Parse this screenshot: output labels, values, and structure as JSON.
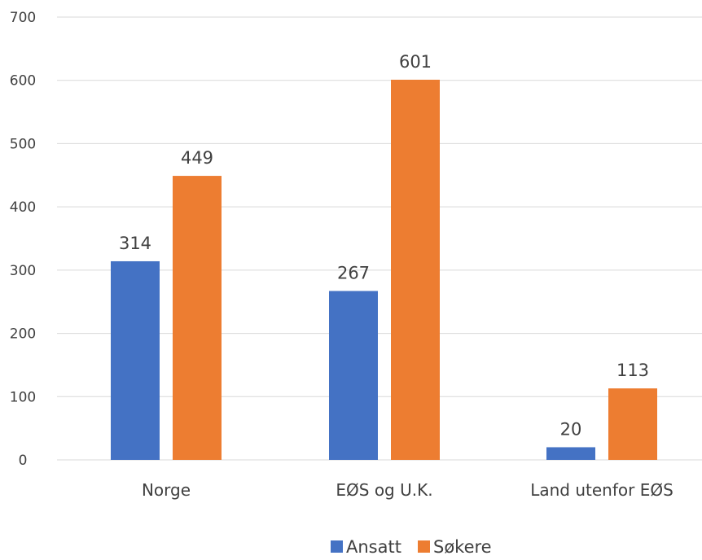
{
  "chart_data": {
    "type": "bar",
    "categories": [
      "Norge",
      "EØS og U.K.",
      "Land utenfor EØS"
    ],
    "series": [
      {
        "name": "Ansatt",
        "values": [
          314,
          267,
          20
        ],
        "color": "#4472C4"
      },
      {
        "name": "Søkere",
        "values": [
          449,
          601,
          113
        ],
        "color": "#ED7D31"
      }
    ],
    "title": "",
    "xlabel": "",
    "ylabel": "",
    "ylim": [
      0,
      700
    ],
    "yticks": [
      0,
      100,
      200,
      300,
      400,
      500,
      600,
      700
    ],
    "grid": true,
    "legend_position": "bottom",
    "data_labels": true
  }
}
